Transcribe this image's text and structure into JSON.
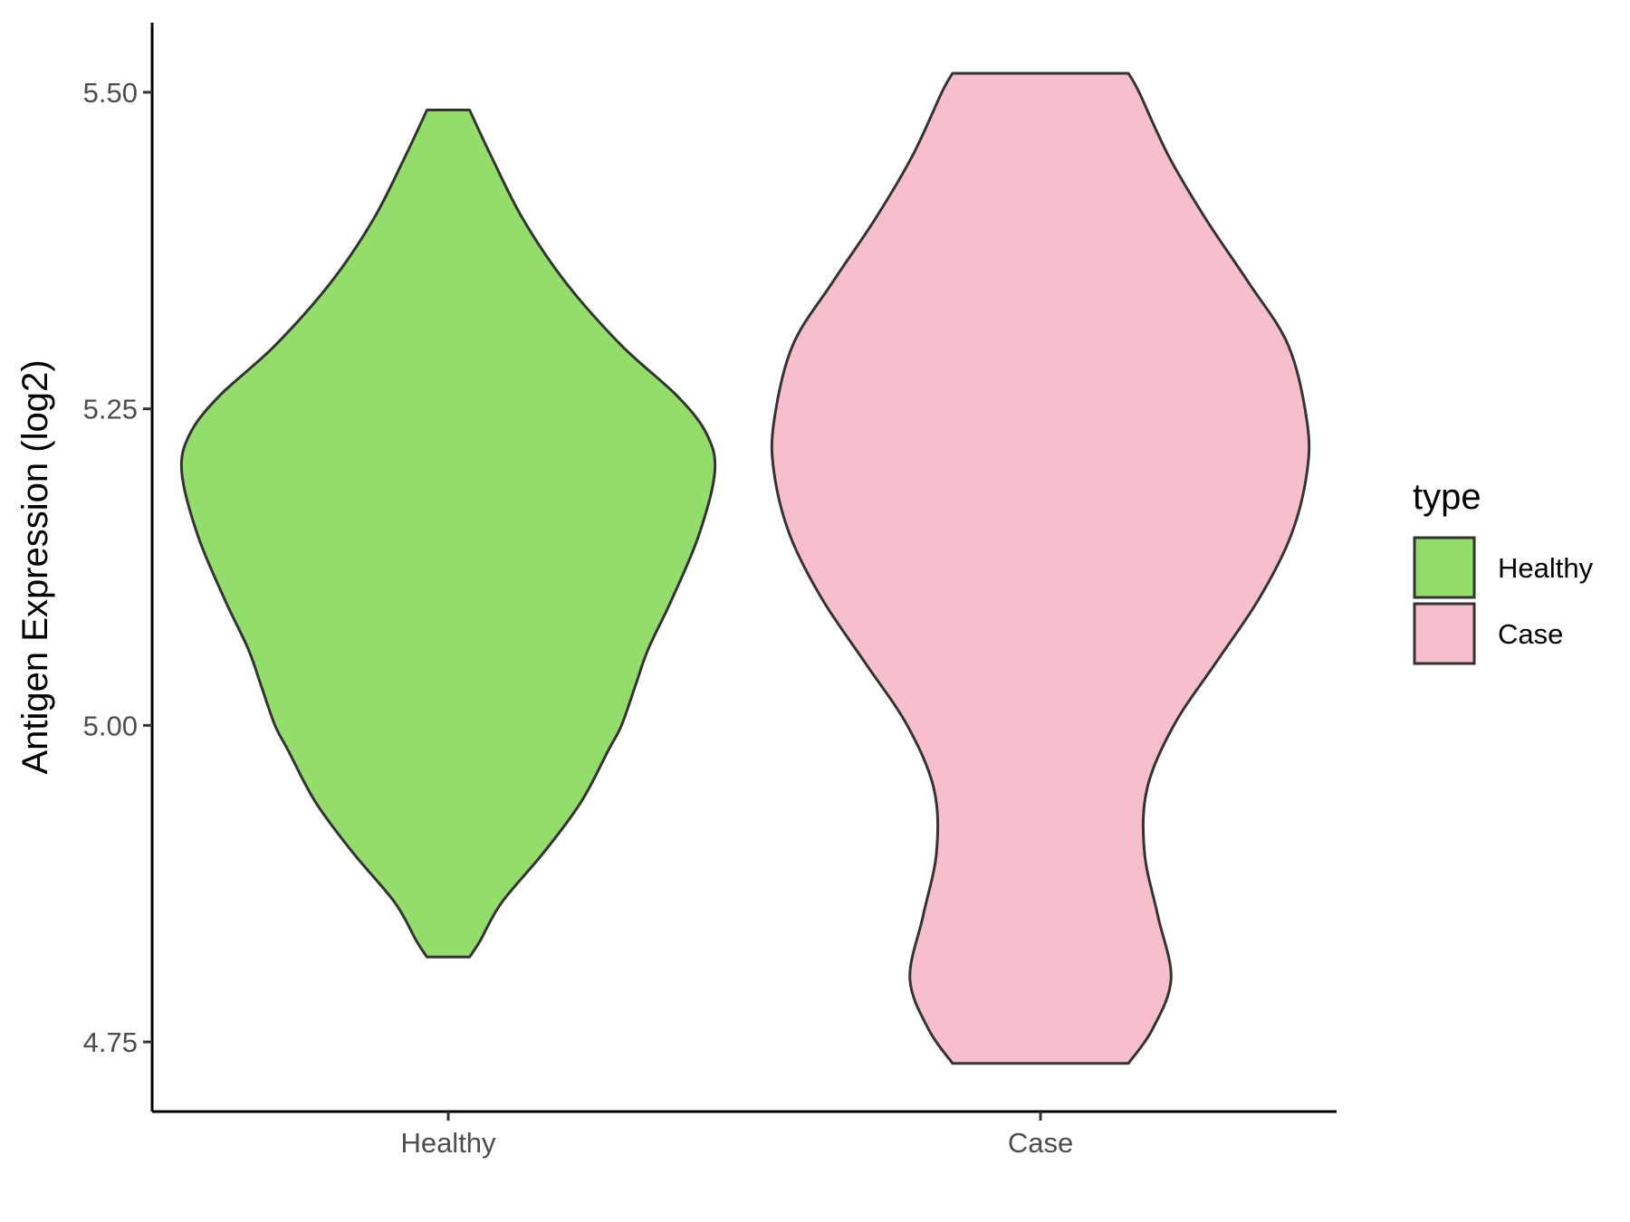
{
  "chart_data": {
    "type": "violin",
    "title": "",
    "xlabel": "",
    "ylabel": "Antigen Expression (log2)",
    "ylim": [
      4.695,
      5.555
    ],
    "yticks": [
      "4.75",
      "5.00",
      "5.25",
      "5.50"
    ],
    "categories": [
      "Healthy",
      "Case"
    ],
    "legend": {
      "title": "type",
      "position": "right",
      "entries": [
        "Healthy",
        "Case"
      ]
    },
    "series": [
      {
        "name": "Healthy",
        "color": "#93dd6b",
        "min": 4.817,
        "max": 5.486,
        "density_profile": [
          [
            4.817,
            0.08
          ],
          [
            4.83,
            0.12
          ],
          [
            4.86,
            0.2
          ],
          [
            4.9,
            0.36
          ],
          [
            4.94,
            0.5
          ],
          [
            4.98,
            0.6
          ],
          [
            5.0,
            0.65
          ],
          [
            5.03,
            0.7
          ],
          [
            5.06,
            0.75
          ],
          [
            5.1,
            0.84
          ],
          [
            5.15,
            0.94
          ],
          [
            5.2,
            1.0
          ],
          [
            5.23,
            0.97
          ],
          [
            5.26,
            0.86
          ],
          [
            5.3,
            0.65
          ],
          [
            5.35,
            0.44
          ],
          [
            5.4,
            0.28
          ],
          [
            5.45,
            0.16
          ],
          [
            5.486,
            0.08
          ]
        ]
      },
      {
        "name": "Case",
        "color": "#f7bfcc",
        "min": 4.733,
        "max": 5.515,
        "density_profile": [
          [
            4.733,
            0.33
          ],
          [
            4.76,
            0.42
          ],
          [
            4.8,
            0.49
          ],
          [
            4.85,
            0.44
          ],
          [
            4.9,
            0.39
          ],
          [
            4.95,
            0.4
          ],
          [
            5.0,
            0.5
          ],
          [
            5.05,
            0.66
          ],
          [
            5.1,
            0.82
          ],
          [
            5.15,
            0.94
          ],
          [
            5.2,
            1.0
          ],
          [
            5.24,
            1.0
          ],
          [
            5.3,
            0.93
          ],
          [
            5.35,
            0.78
          ],
          [
            5.4,
            0.62
          ],
          [
            5.45,
            0.48
          ],
          [
            5.5,
            0.37
          ],
          [
            5.515,
            0.33
          ]
        ]
      }
    ]
  }
}
